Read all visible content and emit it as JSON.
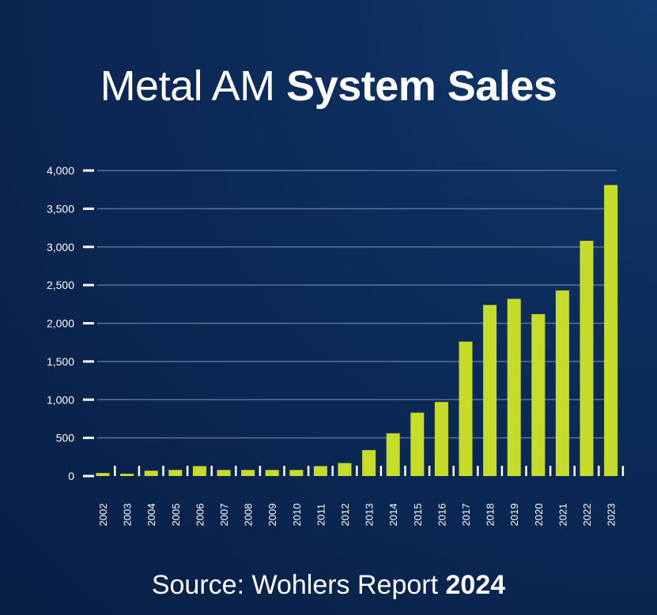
{
  "title": {
    "light": "Metal AM",
    "bold": "System Sales"
  },
  "footer": {
    "source": "Source: Wohlers Report",
    "year": "2024"
  },
  "colors": {
    "bar": "#c6dc2a",
    "grid": "#5c7196",
    "text": "#ffffff",
    "background": "#0b2552"
  },
  "chart_data": {
    "type": "bar",
    "title": "Metal AM System Sales",
    "categories": [
      "2002",
      "2003",
      "2004",
      "2005",
      "2006",
      "2007",
      "2008",
      "2009",
      "2010",
      "2011",
      "2012",
      "2013",
      "2014",
      "2015",
      "2016",
      "2017",
      "2018",
      "2019",
      "2020",
      "2021",
      "2022",
      "2023"
    ],
    "values": [
      40,
      30,
      70,
      80,
      130,
      80,
      80,
      80,
      80,
      130,
      170,
      340,
      560,
      830,
      970,
      1760,
      2240,
      2320,
      2120,
      2430,
      3080,
      3810
    ],
    "yticks": [
      0,
      500,
      1000,
      1500,
      2000,
      2500,
      3000,
      3500,
      4000
    ],
    "ytick_labels": [
      "0",
      "500",
      "1,000",
      "1,500",
      "2,000",
      "2,500",
      "3,000",
      "3,500",
      "4,000"
    ],
    "ylim": [
      0,
      4000
    ],
    "xlabel": "",
    "ylabel": "",
    "grid": true,
    "legend": "none"
  }
}
